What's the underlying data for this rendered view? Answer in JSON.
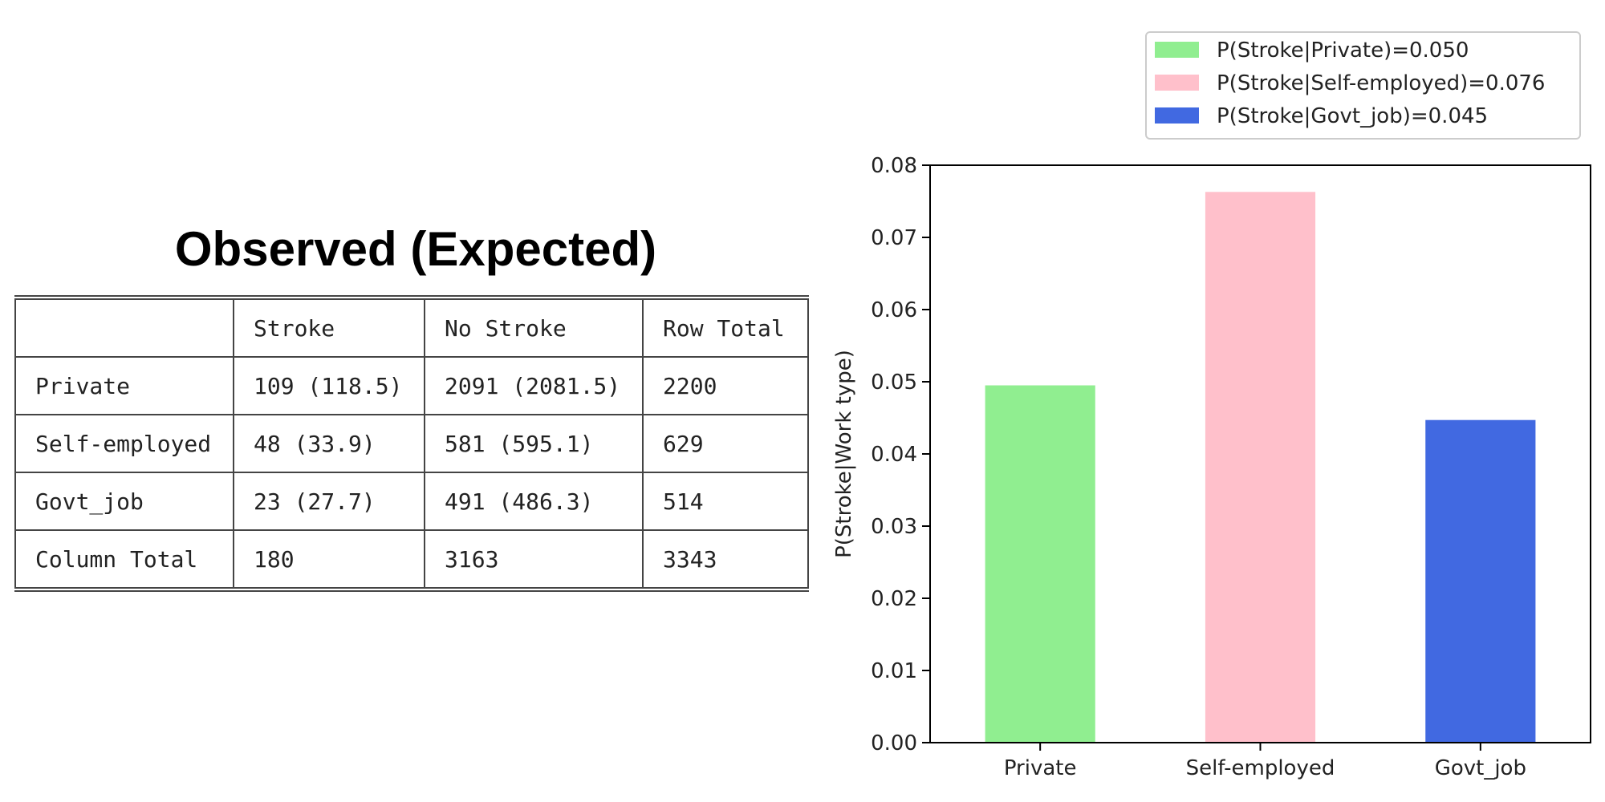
{
  "table": {
    "title": "Observed (Expected)",
    "rows": [
      [
        "",
        "Stroke",
        "No Stroke",
        "Row Total"
      ],
      [
        "Private",
        "109 (118.5)",
        "2091 (2081.5)",
        "2200"
      ],
      [
        "Self-employed",
        "48 (33.9)",
        "581 (595.1)",
        "629"
      ],
      [
        "Govt_job",
        "23 (27.7)",
        "491 (486.3)",
        "514"
      ],
      [
        "Column Total",
        "180",
        "3163",
        "3343"
      ]
    ]
  },
  "chart_data": {
    "type": "bar",
    "categories": [
      "Private",
      "Self-employed",
      "Govt_job"
    ],
    "values": [
      0.0495,
      0.0763,
      0.0447
    ],
    "colors": [
      "#90ee90",
      "#ffc0cb",
      "#4169e1"
    ],
    "legend": [
      "P(Stroke|Private)=0.050",
      "P(Stroke|Self-employed)=0.076",
      "P(Stroke|Govt_job)=0.045"
    ],
    "legend_position": "top-right, above plot",
    "xlabel": "",
    "ylabel": "P(Stroke|Work type)",
    "ylim": [
      0,
      0.08
    ],
    "yticks": [
      "0.00",
      "0.01",
      "0.02",
      "0.03",
      "0.04",
      "0.05",
      "0.06",
      "0.07",
      "0.08"
    ],
    "grid": false
  }
}
